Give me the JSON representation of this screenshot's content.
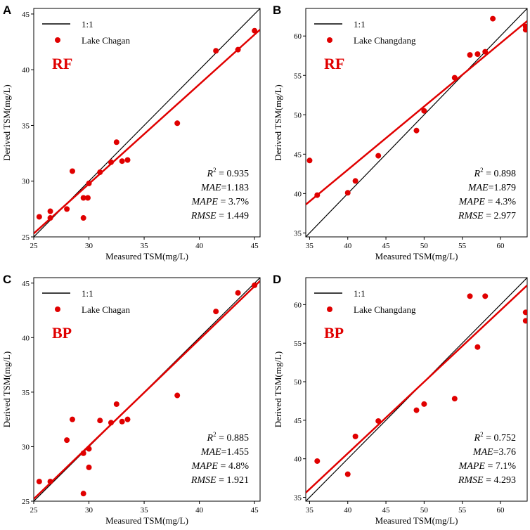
{
  "colors": {
    "red": "#e00000",
    "black": "#000000"
  },
  "chart_data": [
    {
      "type": "scatter",
      "panel_label": "A",
      "method": "RF",
      "lake": "Lake Chagan",
      "identity_label": "1:1",
      "xlabel": "Measured TSM(mg/L)",
      "ylabel": "Derived TSM(mg/L)",
      "xlim": [
        25,
        45.5
      ],
      "ylim": [
        25,
        45.5
      ],
      "xticks": [
        25,
        30,
        35,
        40,
        45
      ],
      "yticks": [
        25,
        30,
        35,
        40,
        45
      ],
      "fit": {
        "x": [
          25,
          45.5
        ],
        "y": [
          25.3,
          43.6
        ]
      },
      "stats": [
        {
          "label": "R",
          "sup": "2",
          "rest": " = 0.935"
        },
        {
          "label": "MAE",
          "sup": "",
          "rest": "=1.183"
        },
        {
          "label": "MAPE",
          "sup": "",
          "rest": " = 3.7%"
        },
        {
          "label": "RMSE",
          "sup": "",
          "rest": " = 1.449"
        }
      ],
      "points": [
        {
          "x": 25.5,
          "y": 26.8
        },
        {
          "x": 26.5,
          "y": 27.3
        },
        {
          "x": 26.5,
          "y": 26.7
        },
        {
          "x": 28.0,
          "y": 27.5
        },
        {
          "x": 28.5,
          "y": 30.9
        },
        {
          "x": 29.5,
          "y": 28.5
        },
        {
          "x": 29.5,
          "y": 26.7
        },
        {
          "x": 29.9,
          "y": 28.5
        },
        {
          "x": 30.0,
          "y": 29.8
        },
        {
          "x": 31.0,
          "y": 30.8
        },
        {
          "x": 32.0,
          "y": 31.7
        },
        {
          "x": 32.5,
          "y": 33.5
        },
        {
          "x": 33.0,
          "y": 31.8
        },
        {
          "x": 33.5,
          "y": 31.9
        },
        {
          "x": 38.0,
          "y": 35.2
        },
        {
          "x": 41.5,
          "y": 41.7
        },
        {
          "x": 43.5,
          "y": 41.8
        },
        {
          "x": 45.0,
          "y": 43.5
        }
      ]
    },
    {
      "type": "scatter",
      "panel_label": "B",
      "method": "RF",
      "lake": "Lake Changdang",
      "identity_label": "1:1",
      "xlabel": "Measured TSM(mg/L)",
      "ylabel": "Derived TSM(mg/L)",
      "xlim": [
        34.5,
        63.5
      ],
      "ylim": [
        34.5,
        63.5
      ],
      "xticks": [
        35,
        40,
        45,
        50,
        55,
        60
      ],
      "yticks": [
        35,
        40,
        45,
        50,
        55,
        60
      ],
      "fit": {
        "x": [
          34.5,
          63.5
        ],
        "y": [
          38.6,
          61.9
        ]
      },
      "stats": [
        {
          "label": "R",
          "sup": "2",
          "rest": " = 0.898"
        },
        {
          "label": "MAE",
          "sup": "",
          "rest": "=1.879"
        },
        {
          "label": "MAPE",
          "sup": "",
          "rest": " = 4.3%"
        },
        {
          "label": "RMSE",
          "sup": "",
          "rest": " = 2.977"
        }
      ],
      "points": [
        {
          "x": 35.0,
          "y": 44.2
        },
        {
          "x": 36.0,
          "y": 39.8
        },
        {
          "x": 40.0,
          "y": 40.1
        },
        {
          "x": 41.0,
          "y": 41.6
        },
        {
          "x": 44.0,
          "y": 44.8
        },
        {
          "x": 49.0,
          "y": 48.0
        },
        {
          "x": 50.0,
          "y": 50.5
        },
        {
          "x": 54.0,
          "y": 54.7
        },
        {
          "x": 56.0,
          "y": 57.6
        },
        {
          "x": 57.0,
          "y": 57.7
        },
        {
          "x": 58.0,
          "y": 58.0
        },
        {
          "x": 59.0,
          "y": 62.2
        },
        {
          "x": 63.3,
          "y": 61.2
        },
        {
          "x": 63.3,
          "y": 60.8
        }
      ]
    },
    {
      "type": "scatter",
      "panel_label": "C",
      "method": "BP",
      "lake": "Lake Chagan",
      "identity_label": "1:1",
      "xlabel": "Measured TSM(mg/L)",
      "ylabel": "Derived TSM(mg/L)",
      "xlim": [
        25,
        45.5
      ],
      "ylim": [
        25,
        45.5
      ],
      "xticks": [
        25,
        30,
        35,
        40,
        45
      ],
      "yticks": [
        25,
        30,
        35,
        40,
        45
      ],
      "fit": {
        "x": [
          25,
          45.5
        ],
        "y": [
          25.2,
          45.2
        ]
      },
      "stats": [
        {
          "label": "R",
          "sup": "2",
          "rest": " = 0.885"
        },
        {
          "label": "MAE",
          "sup": "",
          "rest": "=1.455"
        },
        {
          "label": "MAPE",
          "sup": "",
          "rest": " = 4.8%"
        },
        {
          "label": "RMSE",
          "sup": "",
          "rest": " = 1.921"
        }
      ],
      "points": [
        {
          "x": 25.5,
          "y": 26.8
        },
        {
          "x": 26.5,
          "y": 26.8
        },
        {
          "x": 28.0,
          "y": 30.6
        },
        {
          "x": 28.5,
          "y": 32.5
        },
        {
          "x": 29.5,
          "y": 29.4
        },
        {
          "x": 29.5,
          "y": 25.7
        },
        {
          "x": 30.0,
          "y": 29.8
        },
        {
          "x": 30.0,
          "y": 28.1
        },
        {
          "x": 31.0,
          "y": 32.4
        },
        {
          "x": 32.0,
          "y": 32.2
        },
        {
          "x": 32.5,
          "y": 33.9
        },
        {
          "x": 33.0,
          "y": 32.3
        },
        {
          "x": 33.5,
          "y": 32.5
        },
        {
          "x": 38.0,
          "y": 34.7
        },
        {
          "x": 41.5,
          "y": 42.4
        },
        {
          "x": 43.5,
          "y": 44.1
        },
        {
          "x": 45.0,
          "y": 44.8
        }
      ]
    },
    {
      "type": "scatter",
      "panel_label": "D",
      "method": "BP",
      "lake": "Lake Changdang",
      "identity_label": "1:1",
      "xlabel": "Measured TSM(mg/L)",
      "ylabel": "Derived TSM(mg/L)",
      "xlim": [
        34.5,
        63.5
      ],
      "ylim": [
        34.5,
        63.5
      ],
      "xticks": [
        35,
        40,
        45,
        50,
        55,
        60
      ],
      "yticks": [
        35,
        40,
        45,
        50,
        55,
        60
      ],
      "fit": {
        "x": [
          34.5,
          63.5
        ],
        "y": [
          35.6,
          62.5
        ]
      },
      "stats": [
        {
          "label": "R",
          "sup": "2",
          "rest": " = 0.752"
        },
        {
          "label": "MAE",
          "sup": "",
          "rest": "=3.76"
        },
        {
          "label": "MAPE",
          "sup": "",
          "rest": " = 7.1%"
        },
        {
          "label": "RMSE",
          "sup": "",
          "rest": " = 4.293"
        }
      ],
      "points": [
        {
          "x": 36.0,
          "y": 39.7
        },
        {
          "x": 40.0,
          "y": 38.0
        },
        {
          "x": 41.0,
          "y": 42.9
        },
        {
          "x": 44.0,
          "y": 44.9
        },
        {
          "x": 49.0,
          "y": 46.3
        },
        {
          "x": 50.0,
          "y": 47.1
        },
        {
          "x": 54.0,
          "y": 47.8
        },
        {
          "x": 56.0,
          "y": 61.1
        },
        {
          "x": 57.0,
          "y": 54.5
        },
        {
          "x": 58.0,
          "y": 61.1
        },
        {
          "x": 63.3,
          "y": 59.0
        },
        {
          "x": 63.3,
          "y": 57.9
        }
      ]
    }
  ]
}
